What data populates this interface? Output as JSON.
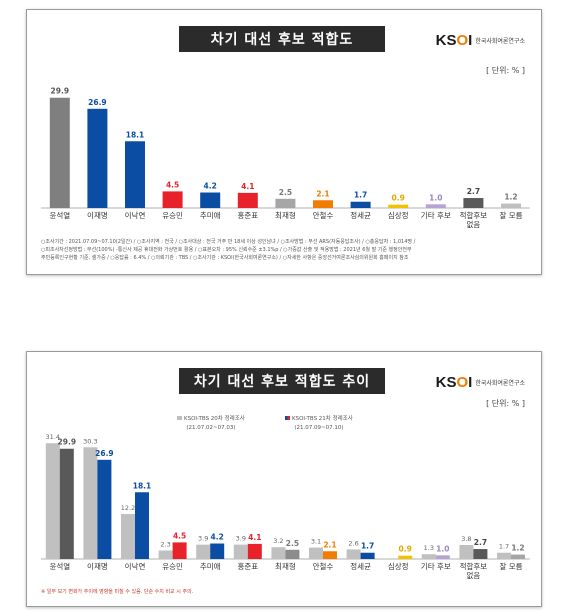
{
  "chart_data": [
    {
      "type": "bar",
      "title": "차기 대선 후보 적합도",
      "unit": "[ 단위: % ]",
      "categories": [
        "윤석열",
        "이재명",
        "이낙연",
        "유승민",
        "추미애",
        "홍준표",
        "최재형",
        "안철수",
        "정세균",
        "심상정",
        "기타 후보",
        "적합후보\n없음",
        "잘 모름"
      ],
      "values": [
        29.9,
        26.9,
        18.1,
        4.5,
        4.2,
        4.1,
        2.5,
        2.1,
        1.7,
        0.9,
        1.0,
        2.7,
        1.2
      ],
      "colors": [
        "#7f7f7f",
        "#0b4da2",
        "#0b4da2",
        "#e8222b",
        "#0b4da2",
        "#e8222b",
        "#a6a6a6",
        "#f07c00",
        "#0b4da2",
        "#f2c200",
        "#b6a2d4",
        "#595959",
        "#bfbfbf"
      ],
      "label_colors": [
        "#555555",
        "#0b4da2",
        "#0b4da2",
        "#e8222b",
        "#0b4da2",
        "#e8222b",
        "#777777",
        "#f07c00",
        "#0b4da2",
        "#e0a800",
        "#9a86c0",
        "#444444",
        "#777777"
      ],
      "ylim": [
        0,
        32
      ],
      "notes": [
        "○조사기간 : 2021.07.09~07.10(2일간)  /  ○조사지역 : 전국  /  ○조사대상 : 전국 거주 만 18세 이상 성인남녀  /  ○조사방법 : 무선 ARS(자동응답조사)  /  ○총응답자 : 1,014명  /",
        "○피조사자선정방법 : 무선(100%) -통신사 제공 휴대전화 가상번호 활용  /  ○표본오차 : 95% 신뢰수준 ±3.1%p  /  ○가중값 산출 및 적용방법 : 2021년 6월 말 기준 행정안전부",
        "주민등록인구현황 기준, 셀가중  /  ○응답률 : 6.4%  /  ○의뢰기관 : TBS  /  ○조사기관 : KSOI(한국사회여론연구소)  /  ○자세한 사항은 중앙선거여론조사심의위원회 홈페이지 참조"
      ]
    },
    {
      "type": "bar",
      "title": "차기 대선 후보 적합도 추이",
      "unit": "[ 단위: % ]",
      "categories": [
        "윤석열",
        "이재명",
        "이낙연",
        "유승민",
        "추미애",
        "홍준표",
        "최재형",
        "안철수",
        "정세균",
        "심상정",
        "기타 후보",
        "적합후보\n없음",
        "잘 모름"
      ],
      "series": [
        {
          "name": "KSOI-TBS 20차 정례조사",
          "period": "(21.07.02~07.03)",
          "values": [
            31.4,
            30.3,
            12.2,
            2.3,
            3.9,
            3.9,
            3.2,
            3.1,
            2.6,
            null,
            1.3,
            3.8,
            1.7
          ]
        },
        {
          "name": "KSOI-TBS 21차 정례조사",
          "period": "(21.07.09~07.10)",
          "values": [
            29.9,
            26.9,
            18.1,
            4.5,
            4.2,
            4.1,
            2.5,
            2.1,
            1.7,
            0.9,
            1.0,
            2.7,
            1.2
          ]
        }
      ],
      "series1_color": "#c0c0c0",
      "series2_colors": [
        "#595959",
        "#0b4da2",
        "#0b4da2",
        "#e8222b",
        "#0b4da2",
        "#e8222b",
        "#8c8c8c",
        "#f07c00",
        "#0b4da2",
        "#f2c200",
        "#b6a2d4",
        "#595959",
        "#a6a6a6"
      ],
      "label_colors": [
        "#555555",
        "#0b4da2",
        "#0b4da2",
        "#e8222b",
        "#0b4da2",
        "#e8222b",
        "#777777",
        "#f07c00",
        "#0b4da2",
        "#e0a800",
        "#9a86c0",
        "#444444",
        "#777777"
      ],
      "ylim": [
        0,
        32
      ],
      "notes": [
        "※ 일부 보기 변화가 추이에 영향을 미칠 수 있음. 단순 수치 비교 시 주의."
      ]
    }
  ],
  "logo": {
    "mark": "KS",
    "mark_o": "O",
    "mark_end": "I",
    "text": "한국사회여론연구소"
  }
}
